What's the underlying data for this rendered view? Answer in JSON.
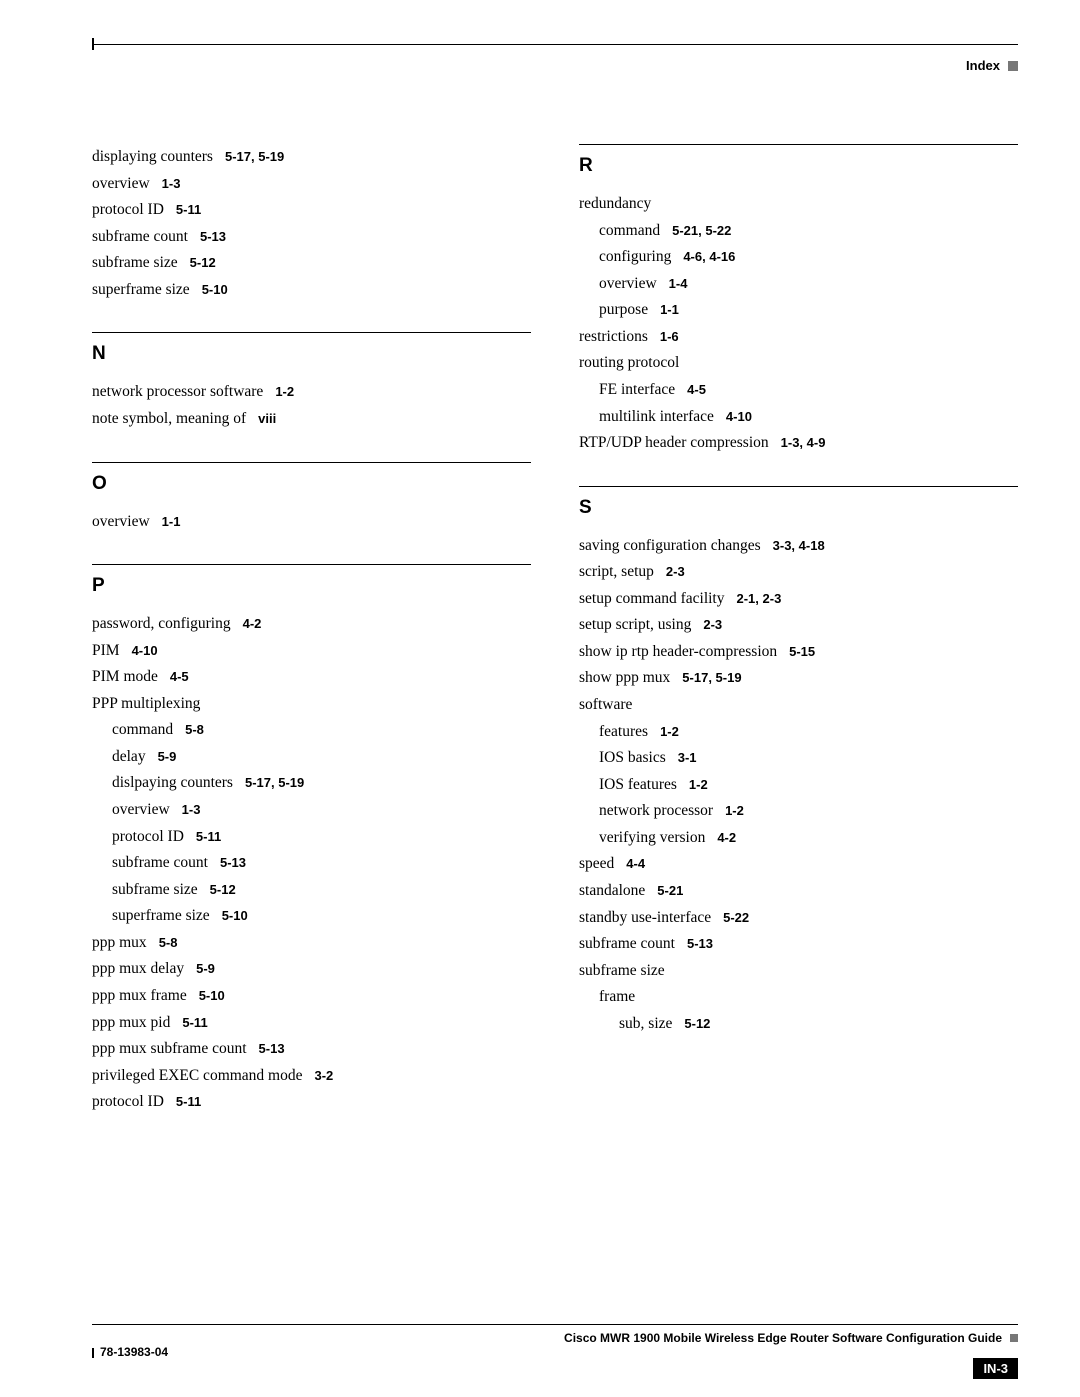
{
  "header": {
    "label": "Index"
  },
  "footer": {
    "title": "Cisco MWR 1900 Mobile Wireless Edge Router Software Configuration Guide",
    "docnum": "78-13983-04",
    "pagenum": "IN-3"
  },
  "left": {
    "pre": [
      {
        "label": "displaying counters",
        "ref": "5-17, 5-19",
        "indent": 0
      },
      {
        "label": "overview",
        "ref": "1-3",
        "indent": 0
      },
      {
        "label": "protocol ID",
        "ref": "5-11",
        "indent": 0
      },
      {
        "label": "subframe count",
        "ref": "5-13",
        "indent": 0
      },
      {
        "label": "subframe size",
        "ref": "5-12",
        "indent": 0
      },
      {
        "label": "superframe size",
        "ref": "5-10",
        "indent": 0
      }
    ],
    "sections": [
      {
        "letter": "N",
        "entries": [
          {
            "label": "network processor software",
            "ref": "1-2",
            "indent": 0
          },
          {
            "label": "note symbol, meaning of",
            "ref": "viii",
            "indent": 0
          }
        ]
      },
      {
        "letter": "O",
        "entries": [
          {
            "label": "overview",
            "ref": "1-1",
            "indent": 0
          }
        ]
      },
      {
        "letter": "P",
        "entries": [
          {
            "label": "password, configuring",
            "ref": "4-2",
            "indent": 0
          },
          {
            "label": "PIM",
            "ref": "4-10",
            "indent": 0
          },
          {
            "label": "PIM mode",
            "ref": "4-5",
            "indent": 0
          },
          {
            "label": "PPP multiplexing",
            "ref": "",
            "indent": 0
          },
          {
            "label": "command",
            "ref": "5-8",
            "indent": 1
          },
          {
            "label": "delay",
            "ref": "5-9",
            "indent": 1
          },
          {
            "label": "dislpaying counters",
            "ref": "5-17, 5-19",
            "indent": 1
          },
          {
            "label": "overview",
            "ref": "1-3",
            "indent": 1
          },
          {
            "label": "protocol ID",
            "ref": "5-11",
            "indent": 1
          },
          {
            "label": "subframe count",
            "ref": "5-13",
            "indent": 1
          },
          {
            "label": "subframe size",
            "ref": "5-12",
            "indent": 1
          },
          {
            "label": "superframe size",
            "ref": "5-10",
            "indent": 1
          },
          {
            "label": "ppp mux",
            "ref": "5-8",
            "indent": 0
          },
          {
            "label": "ppp mux delay",
            "ref": "5-9",
            "indent": 0
          },
          {
            "label": "ppp mux frame",
            "ref": "5-10",
            "indent": 0
          },
          {
            "label": "ppp mux pid",
            "ref": "5-11",
            "indent": 0
          },
          {
            "label": "ppp mux subframe count",
            "ref": "5-13",
            "indent": 0
          },
          {
            "label": "privileged EXEC command mode",
            "ref": "3-2",
            "indent": 0
          },
          {
            "label": "protocol ID",
            "ref": "5-11",
            "indent": 0
          }
        ]
      }
    ]
  },
  "right": {
    "sections": [
      {
        "letter": "R",
        "entries": [
          {
            "label": "redundancy",
            "ref": "",
            "indent": 0
          },
          {
            "label": "command",
            "ref": "5-21, 5-22",
            "indent": 1
          },
          {
            "label": "configuring",
            "ref": "4-6, 4-16",
            "indent": 1
          },
          {
            "label": "overview",
            "ref": "1-4",
            "indent": 1
          },
          {
            "label": "purpose",
            "ref": "1-1",
            "indent": 1
          },
          {
            "label": "restrictions",
            "ref": "1-6",
            "indent": 0
          },
          {
            "label": "routing protocol",
            "ref": "",
            "indent": 0
          },
          {
            "label": "FE interface",
            "ref": "4-5",
            "indent": 1
          },
          {
            "label": "multilink interface",
            "ref": "4-10",
            "indent": 1
          },
          {
            "label": "RTP/UDP header compression",
            "ref": "1-3, 4-9",
            "indent": 0
          }
        ]
      },
      {
        "letter": "S",
        "entries": [
          {
            "label": "saving configuration changes",
            "ref": "3-3, 4-18",
            "indent": 0
          },
          {
            "label": "script, setup",
            "ref": "2-3",
            "indent": 0
          },
          {
            "label": "setup command facility",
            "ref": "2-1, 2-3",
            "indent": 0
          },
          {
            "label": "setup script, using",
            "ref": "2-3",
            "indent": 0
          },
          {
            "label": "show ip rtp header-compression",
            "ref": "5-15",
            "indent": 0
          },
          {
            "label": "show ppp mux",
            "ref": "5-17, 5-19",
            "indent": 0
          },
          {
            "label": "software",
            "ref": "",
            "indent": 0
          },
          {
            "label": "features",
            "ref": "1-2",
            "indent": 1
          },
          {
            "label": "IOS basics",
            "ref": "3-1",
            "indent": 1
          },
          {
            "label": "IOS features",
            "ref": "1-2",
            "indent": 1
          },
          {
            "label": "network processor",
            "ref": "1-2",
            "indent": 1
          },
          {
            "label": "verifying version",
            "ref": "4-2",
            "indent": 1
          },
          {
            "label": "speed",
            "ref": "4-4",
            "indent": 0
          },
          {
            "label": "standalone",
            "ref": "5-21",
            "indent": 0
          },
          {
            "label": "standby use-interface",
            "ref": "5-22",
            "indent": 0
          },
          {
            "label": "subframe count",
            "ref": "5-13",
            "indent": 0
          },
          {
            "label": "subframe size",
            "ref": "",
            "indent": 0
          },
          {
            "label": "frame",
            "ref": "",
            "indent": 1
          },
          {
            "label": "sub, size",
            "ref": "5-12",
            "indent": 2
          }
        ]
      }
    ]
  }
}
